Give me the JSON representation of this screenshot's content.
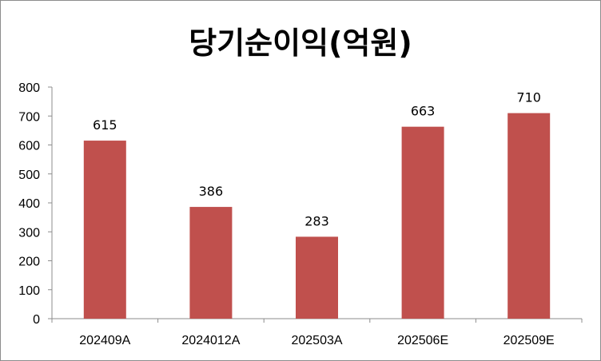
{
  "chart_data": {
    "type": "bar",
    "title": "당기순이익(억원)",
    "categories": [
      "202409A",
      "2024012A",
      "202503A",
      "202506E",
      "202509E"
    ],
    "values": [
      615,
      386,
      283,
      663,
      710
    ],
    "data_labels": [
      "615",
      "386",
      "283",
      "663",
      "710"
    ],
    "yticks": [
      "0",
      "100",
      "200",
      "300",
      "400",
      "500",
      "600",
      "700",
      "800"
    ],
    "ylim": [
      0,
      800
    ],
    "bar_color": "#c0504d",
    "grid": false,
    "legend": "none"
  }
}
